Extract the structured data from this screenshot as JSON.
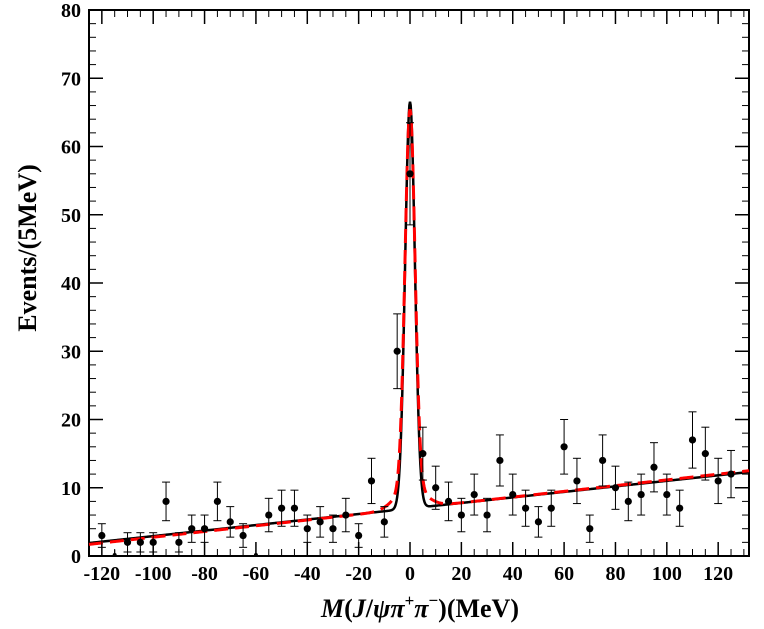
{
  "chart_data": {
    "type": "scatter",
    "title": "",
    "xlabel_parts": {
      "m": "M",
      "open": "(",
      "j": "J",
      "slash": "/",
      "psi": "ψπ",
      "plus": "+",
      "pi2": "π",
      "minus": "−",
      "close": ")(MeV)"
    },
    "ylabel": "Events/(5MeV)",
    "xlim": [
      -125,
      132
    ],
    "ylim": [
      0,
      80
    ],
    "x_ticks": [
      -120,
      -100,
      -80,
      -60,
      -40,
      -20,
      0,
      20,
      40,
      60,
      80,
      100,
      120
    ],
    "y_ticks": [
      0,
      10,
      20,
      30,
      40,
      50,
      60,
      70,
      80
    ],
    "grid": false,
    "series": [
      {
        "kind": "data-points-with-error-bars",
        "color": "#000000",
        "x": [
          -120,
          -115,
          -110,
          -105,
          -100,
          -95,
          -90,
          -85,
          -80,
          -75,
          -70,
          -65,
          -60,
          -55,
          -50,
          -45,
          -40,
          -35,
          -30,
          -25,
          -20,
          -15,
          -10,
          -5,
          0,
          5,
          10,
          15,
          20,
          25,
          30,
          35,
          40,
          45,
          50,
          55,
          60,
          65,
          70,
          75,
          80,
          85,
          90,
          95,
          100,
          105,
          110,
          115,
          120,
          125
        ],
        "y": [
          3,
          0,
          2,
          2,
          2,
          8,
          2,
          4,
          4,
          8,
          5,
          3,
          0,
          6,
          7,
          7,
          4,
          5,
          4,
          6,
          3,
          11,
          5,
          30,
          56,
          15,
          10,
          8,
          6,
          9,
          6,
          14,
          9,
          7,
          5,
          7,
          16,
          11,
          4,
          14,
          10,
          8,
          9,
          13,
          9,
          7,
          17,
          15,
          11,
          12
        ]
      },
      {
        "kind": "fit-solid",
        "color": "#000000",
        "background": {
          "x0": -125,
          "y0": 1.9,
          "slope": 0.0405
        },
        "signal": {
          "mean": 0,
          "sigma": 1.9,
          "amplitude": 59.6
        }
      },
      {
        "kind": "fit-dashed",
        "color": "#ff0000",
        "background": {
          "x0": -125,
          "y0": 1.7,
          "slope": 0.042
        },
        "signal": {
          "mean": 0,
          "sigma": 1.95,
          "amplitude": 55.3,
          "tail_amplitude": 3.2,
          "tail_sigma": 5.5
        }
      }
    ]
  }
}
